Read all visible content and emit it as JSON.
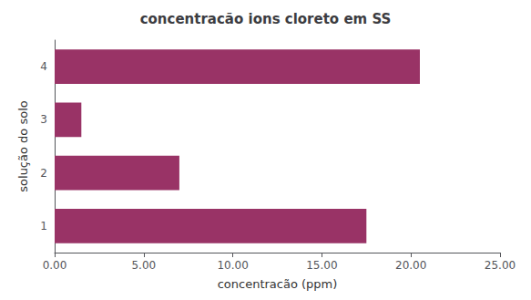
{
  "chart_data": {
    "type": "bar",
    "orientation": "horizontal",
    "title": "concentracão ions cloreto em SS",
    "xlabel": "concentracão (ppm)",
    "ylabel": "solução do solo",
    "categories": [
      "1",
      "2",
      "3",
      "4"
    ],
    "values": [
      17.5,
      7.0,
      1.5,
      20.5
    ],
    "color": "#993366",
    "xlim": [
      0,
      25
    ],
    "xticks": [
      {
        "value": 0,
        "label": "0.00"
      },
      {
        "value": 5,
        "label": "5.00"
      },
      {
        "value": 10,
        "label": "10.00"
      },
      {
        "value": 15,
        "label": "15.00"
      },
      {
        "value": 20,
        "label": "20.00"
      },
      {
        "value": 25,
        "label": "25.00"
      }
    ],
    "grid": false
  }
}
